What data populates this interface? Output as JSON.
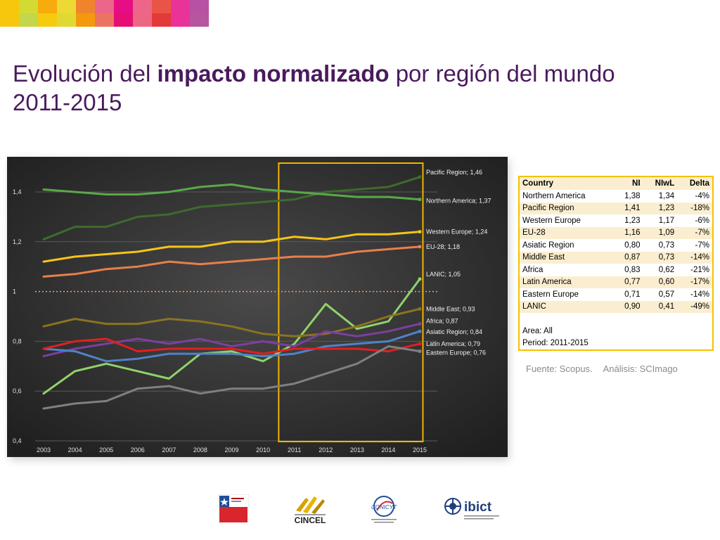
{
  "title": {
    "part1": "Evolución del ",
    "bold": "impacto normalizado",
    "part2": " por región del mundo",
    "line2": "2011-2015"
  },
  "colors": {
    "strip_top": [
      "#f5c400",
      "#c8d200",
      "#f7a700",
      "#e83e6b",
      "#e5007e",
      "#e83e6b",
      "#cc3388",
      "#b3489e"
    ],
    "title": "#4a1a5c",
    "chart_bg": "#3a3a3a",
    "highlight": "#f2b300",
    "table_border": "#f2c200",
    "table_alt": "#fbeed0"
  },
  "chart_data": {
    "type": "line",
    "x": [
      2003,
      2004,
      2005,
      2006,
      2007,
      2008,
      2009,
      2010,
      2011,
      2012,
      2013,
      2014,
      2015
    ],
    "xlabel": "",
    "ylabel": "",
    "ylim": [
      0.4,
      1.5
    ],
    "yticks": [
      0.4,
      0.6,
      0.8,
      1,
      1.2,
      1.4
    ],
    "ytick_labels": [
      "0,4",
      "0,6",
      "0,8",
      "1",
      "1,2",
      "1,4"
    ],
    "reference_line": 1,
    "highlight_range": [
      2010.5,
      2015.1
    ],
    "grid": true,
    "series": [
      {
        "name": "Pacific Region",
        "label": "Pacific Region; 1,46",
        "color": "#3e6b2e",
        "values": [
          1.21,
          1.26,
          1.26,
          1.3,
          1.31,
          1.34,
          1.35,
          1.36,
          1.37,
          1.4,
          1.41,
          1.42,
          1.46
        ]
      },
      {
        "name": "Northern America",
        "label": "Northern America; 1,37",
        "color": "#5aa84a",
        "values": [
          1.41,
          1.4,
          1.39,
          1.39,
          1.4,
          1.42,
          1.43,
          1.41,
          1.4,
          1.39,
          1.38,
          1.38,
          1.37
        ]
      },
      {
        "name": "Western Europe",
        "label": "Western Europe; 1,24",
        "color": "#f5c518",
        "values": [
          1.12,
          1.14,
          1.15,
          1.16,
          1.18,
          1.18,
          1.2,
          1.2,
          1.22,
          1.21,
          1.23,
          1.23,
          1.24
        ]
      },
      {
        "name": "EU-28",
        "label": "EU-28; 1,18",
        "color": "#e8804a",
        "values": [
          1.06,
          1.07,
          1.09,
          1.1,
          1.12,
          1.11,
          1.12,
          1.13,
          1.14,
          1.14,
          1.16,
          1.17,
          1.18
        ]
      },
      {
        "name": "LANIC",
        "label": "LANIC; 1,05",
        "color": "#8fd36a",
        "values": [
          0.59,
          0.68,
          0.71,
          0.68,
          0.65,
          0.75,
          0.76,
          0.72,
          0.79,
          0.95,
          0.85,
          0.88,
          1.05
        ]
      },
      {
        "name": "Middle East",
        "label": "Middle East; 0,93",
        "color": "#8a7420",
        "values": [
          0.86,
          0.89,
          0.87,
          0.87,
          0.89,
          0.88,
          0.86,
          0.83,
          0.82,
          0.83,
          0.86,
          0.9,
          0.93
        ]
      },
      {
        "name": "Africa",
        "label": "Africa; 0,87",
        "color": "#7d3fa0",
        "values": [
          0.74,
          0.77,
          0.79,
          0.81,
          0.79,
          0.81,
          0.78,
          0.8,
          0.78,
          0.84,
          0.82,
          0.84,
          0.87
        ]
      },
      {
        "name": "Asiatic Region",
        "label": "Asiatic Region; 0,84",
        "color": "#4f82c8",
        "values": [
          0.77,
          0.76,
          0.72,
          0.73,
          0.75,
          0.75,
          0.75,
          0.74,
          0.75,
          0.78,
          0.79,
          0.8,
          0.84
        ]
      },
      {
        "name": "Latin America",
        "label": "Latin America; 0,79",
        "color": "#e02020",
        "values": [
          0.77,
          0.8,
          0.81,
          0.76,
          0.77,
          0.77,
          0.77,
          0.75,
          0.77,
          0.77,
          0.77,
          0.76,
          0.79
        ]
      },
      {
        "name": "Eastern Europe",
        "label": "Eastern Europe; 0,76",
        "color": "#808080",
        "values": [
          0.53,
          0.55,
          0.56,
          0.61,
          0.62,
          0.59,
          0.61,
          0.61,
          0.63,
          0.67,
          0.71,
          0.78,
          0.76
        ]
      }
    ]
  },
  "table": {
    "headers": [
      "Country",
      "NI",
      "NIwL",
      "Delta"
    ],
    "rows": [
      [
        "Northern America",
        "1,38",
        "1,34",
        "-4%"
      ],
      [
        "Pacific Region",
        "1,41",
        "1,23",
        "-18%"
      ],
      [
        "Western Europe",
        "1,23",
        "1,17",
        "-6%"
      ],
      [
        "EU-28",
        "1,16",
        "1,09",
        "-7%"
      ],
      [
        "Asiatic Region",
        "0,80",
        "0,73",
        "-7%"
      ],
      [
        "Middle East",
        "0,87",
        "0,73",
        "-14%"
      ],
      [
        "Africa",
        "0,83",
        "0,62",
        "-21%"
      ],
      [
        "Latin America",
        "0,77",
        "0,60",
        "-17%"
      ],
      [
        "Eastern Europe",
        "0,71",
        "0,57",
        "-14%"
      ],
      [
        "LANIC",
        "0,90",
        "0,41",
        "-49%"
      ]
    ],
    "area": "Area: All",
    "period": "Period: 2011-2015"
  },
  "source": {
    "fuente": "Fuente: Scopus.",
    "analisis": "Análisis: SCImago"
  },
  "logos": {
    "cincel": "CINCEL",
    "conicyt": "CONICYT",
    "ibict": "ibict"
  }
}
